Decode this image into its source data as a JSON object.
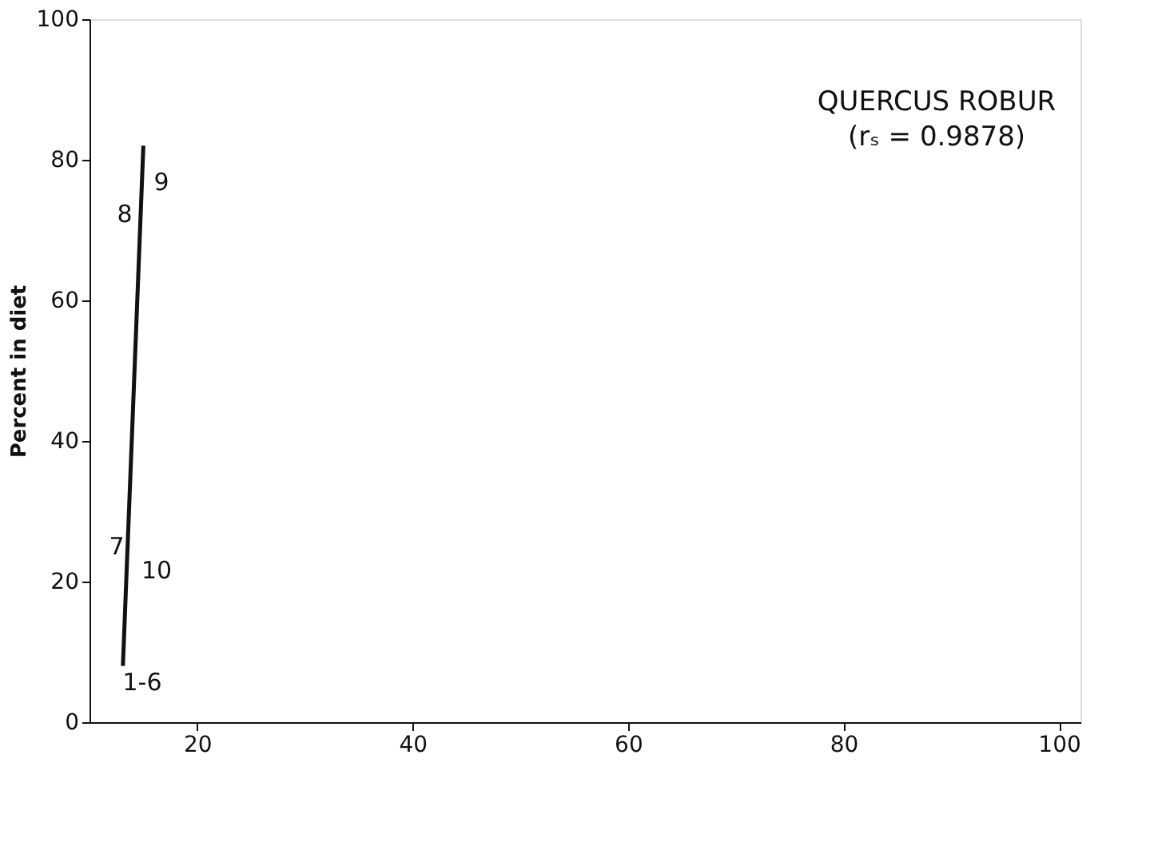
{
  "chart_data": {
    "type": "line",
    "ylabel": "Percent in diet",
    "series": [
      {
        "color": "#111111",
        "x": [
          13.1,
          15
        ],
        "values": [
          8,
          82
        ]
      }
    ],
    "xlim": [
      10,
      102
    ],
    "xticks": [
      20,
      40,
      60,
      80,
      100
    ],
    "ylim": [
      0,
      100
    ],
    "yticks": [
      0,
      20,
      40,
      60,
      80,
      100
    ],
    "grid": false,
    "marker": "none",
    "line_style": "solid",
    "annotations": [
      "1-6",
      "7",
      "10",
      "8",
      "9",
      "QUERCUS ROBUR",
      "(rₛ = 0.9878)"
    ]
  }
}
